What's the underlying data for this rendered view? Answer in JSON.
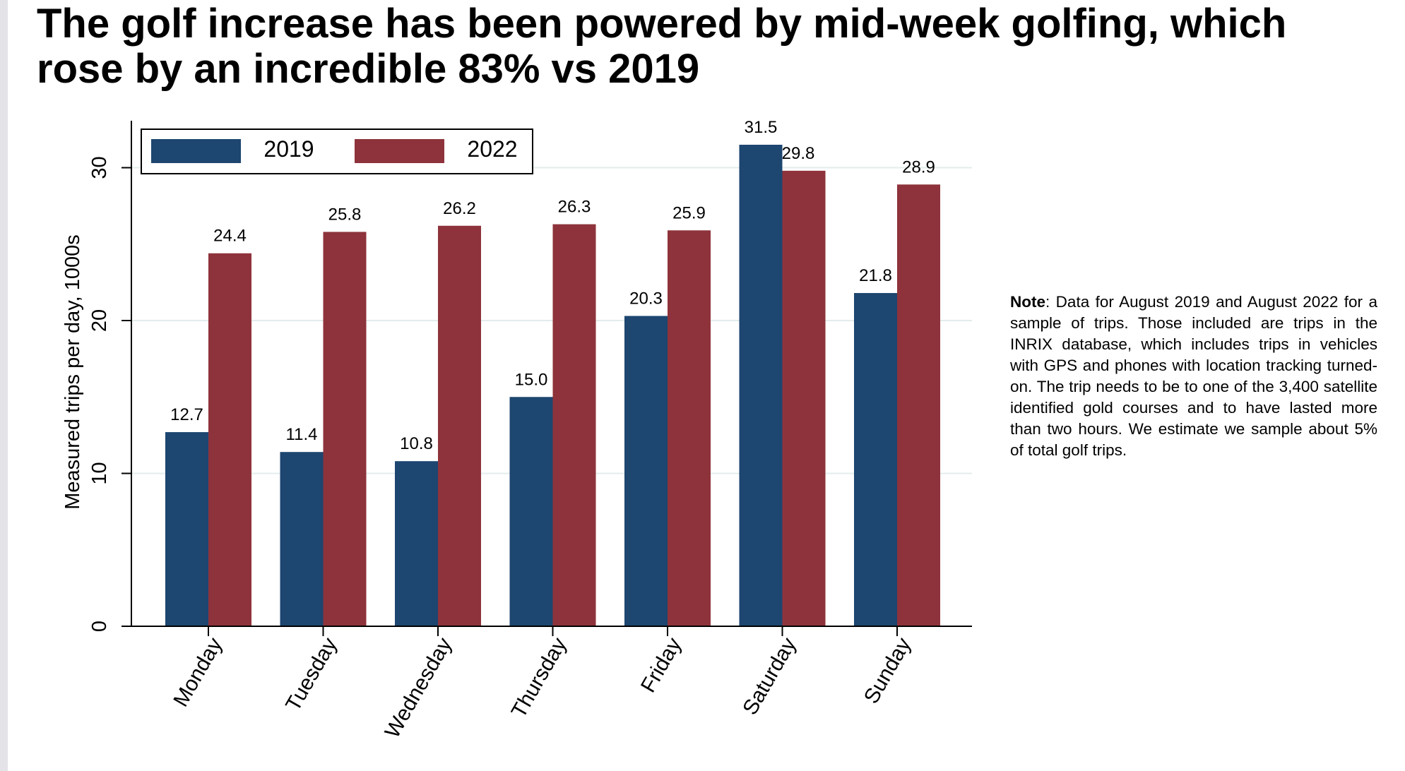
{
  "page": {
    "title_line1": "The golf increase has been powered by mid-week golfing, which",
    "title_line2": "rose by an incredible 83% vs 2019"
  },
  "note": {
    "label": "Note",
    "text": ": Data for August 2019 and August 2022 for a sample of trips. Those included are trips in the INRIX database, which includes trips in vehicles with GPS and phones with location tracking turned-on. The trip needs to be to one of the 3,400 satellite identified gold courses and to have lasted more than two hours. We estimate we sample about 5% of total golf trips."
  },
  "chart_data": {
    "type": "bar",
    "title": "",
    "xlabel": "",
    "ylabel": "Measured trips per day, 1000s",
    "categories": [
      "Monday",
      "Tuesday",
      "Wednesday",
      "Thursday",
      "Friday",
      "Saturday",
      "Sunday"
    ],
    "series": [
      {
        "name": "2019",
        "color": "#1d4670",
        "values": [
          12.7,
          11.4,
          10.8,
          15.0,
          20.3,
          31.5,
          21.8
        ],
        "labels": [
          "12.7",
          "11.4",
          "10.8",
          "15.0",
          "20.3",
          "31.5",
          "21.8"
        ]
      },
      {
        "name": "2022",
        "color": "#8e333b",
        "values": [
          24.4,
          25.8,
          26.2,
          26.3,
          25.9,
          29.8,
          28.9
        ],
        "labels": [
          "24.4",
          "25.8",
          "26.2",
          "26.3",
          "25.9",
          "29.8",
          "28.9"
        ]
      }
    ],
    "yticks": [
      0,
      10,
      20,
      30
    ],
    "ytick_labels": [
      "0",
      "10",
      "20",
      "30"
    ],
    "ylim": [
      0,
      33
    ],
    "grid": true,
    "legend_position": "top-left",
    "data_labels": true
  }
}
